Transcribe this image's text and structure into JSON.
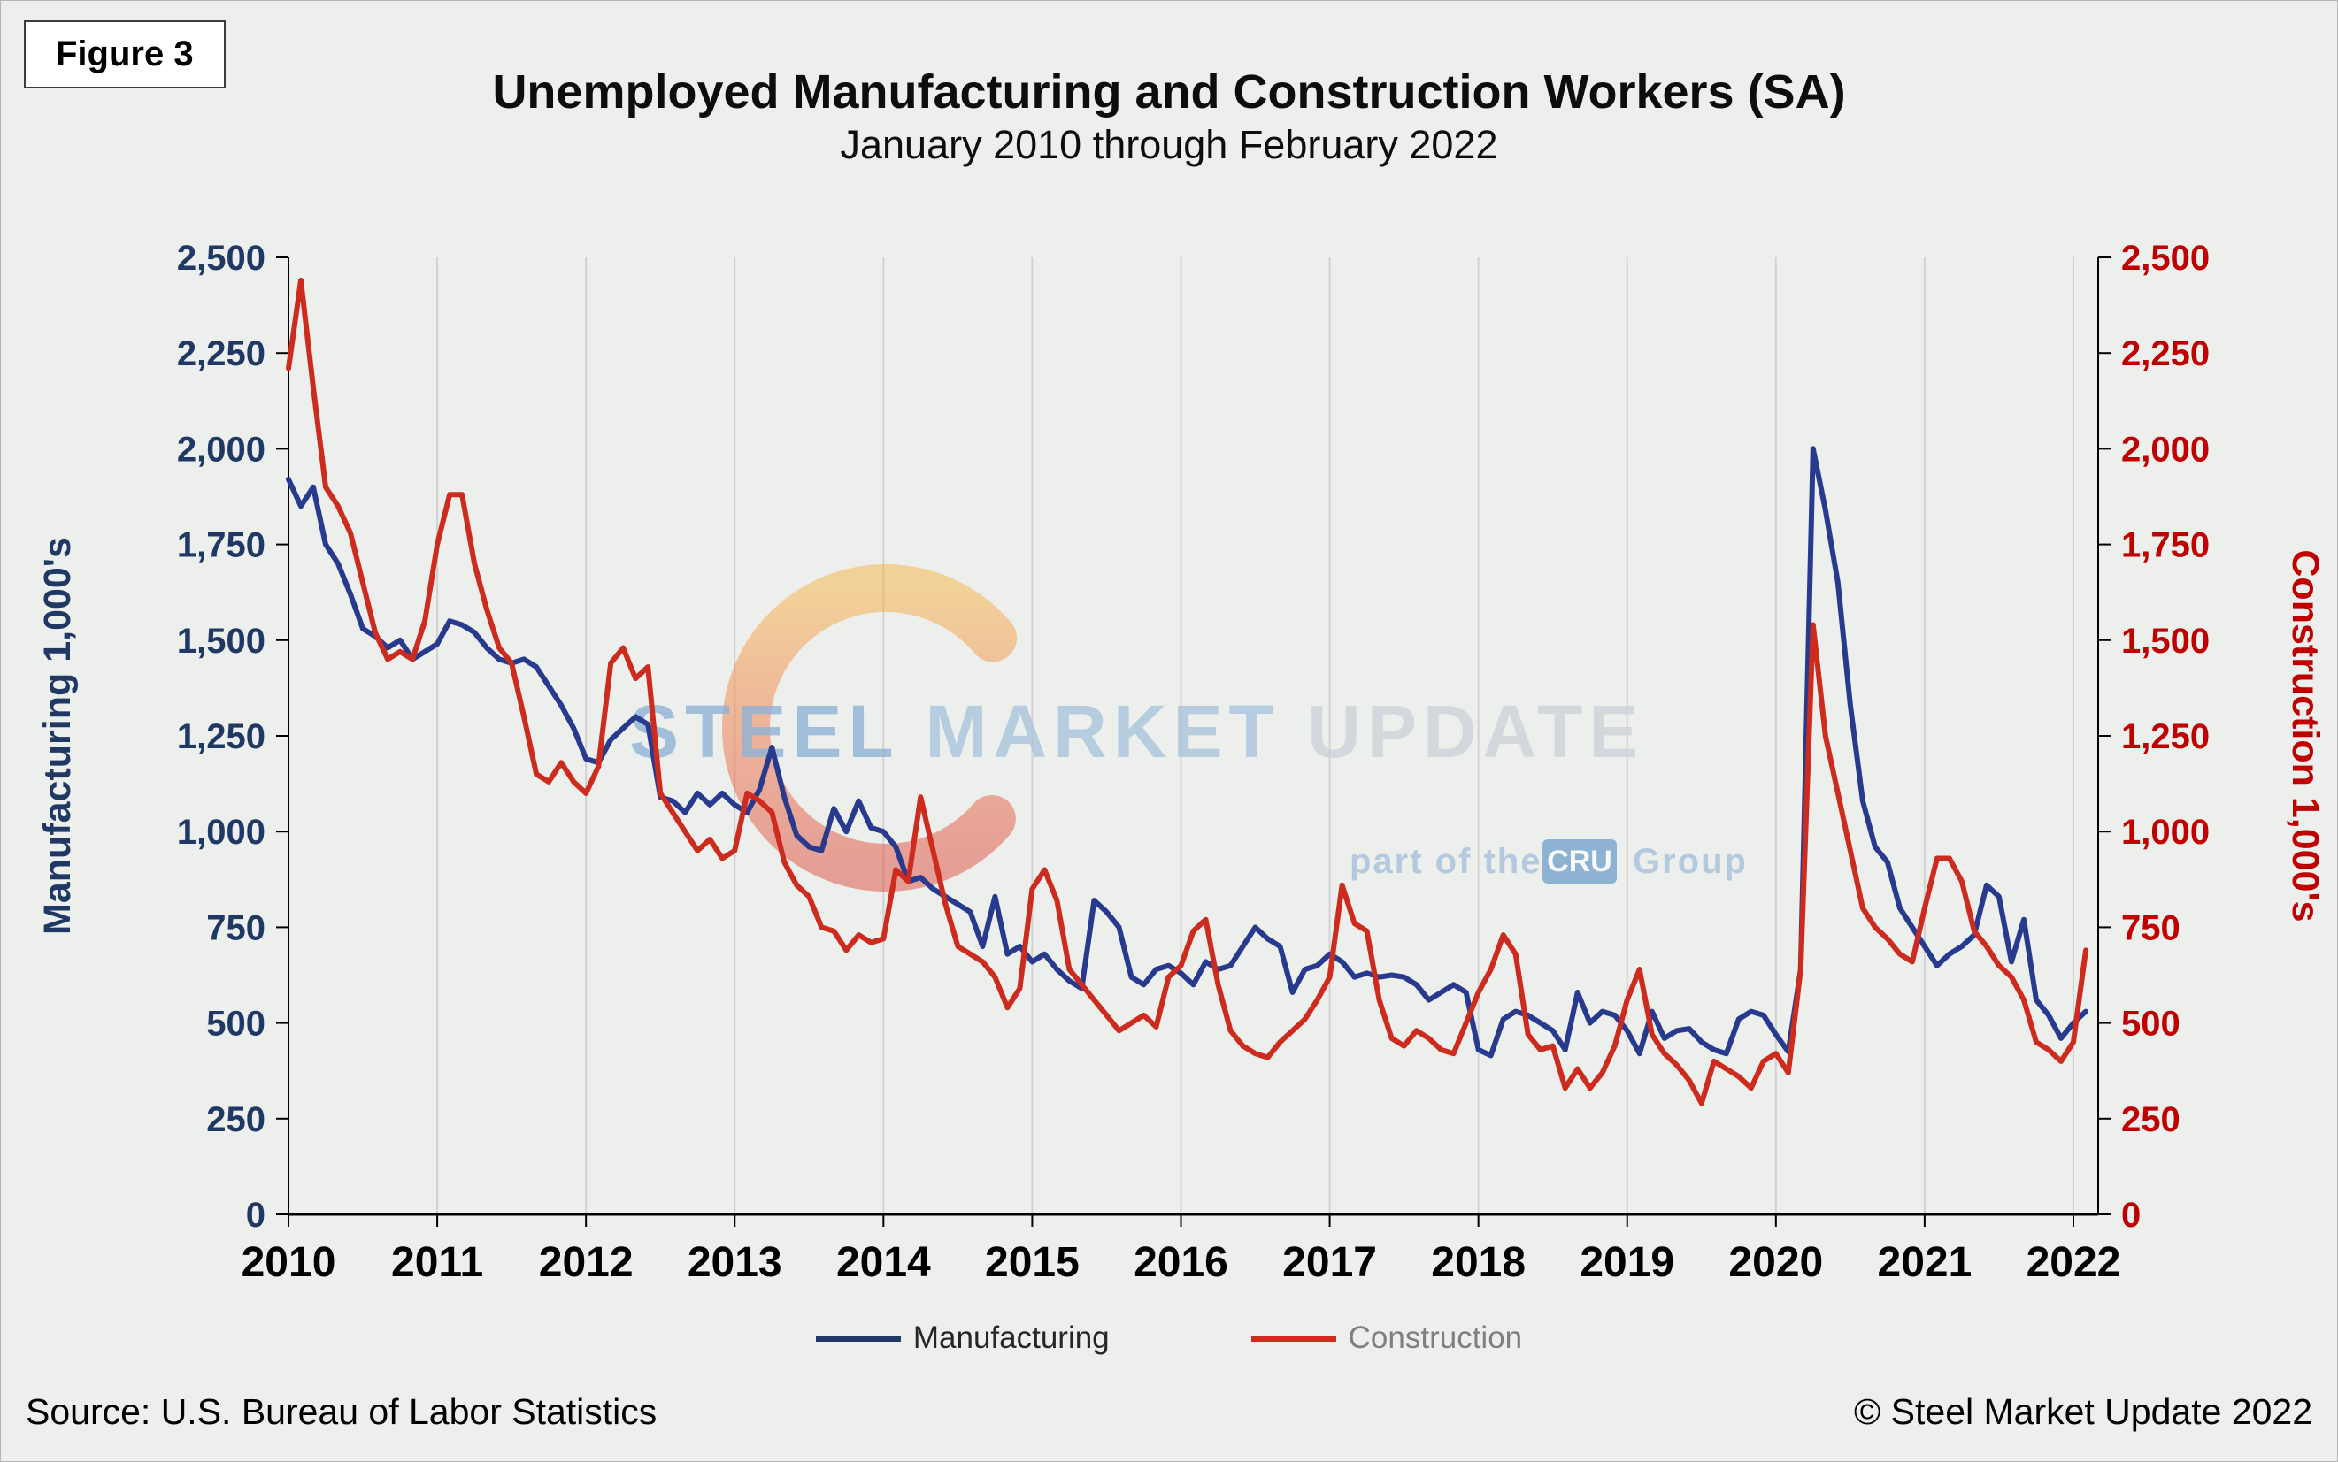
{
  "figure_label": "Figure 3",
  "title": "Unemployed Manufacturing and Construction Workers (SA)",
  "subtitle": "January 2010 through February 2022",
  "source": "Source: U.S. Bureau  of Labor Statistics",
  "copyright": "© Steel Market Update 2022",
  "watermark": {
    "steel": "STEEL",
    "market": "MARKET",
    "update": "UPDATE",
    "part_of": "part of the",
    "cru": "CRU",
    "group": "Group"
  },
  "legend": [
    {
      "label": "Manufacturing",
      "color": "#1F3864",
      "text_color": "#262626"
    },
    {
      "label": "Construction",
      "color": "#CC2B1D",
      "text_color": "#7f7f7f"
    }
  ],
  "chart_data": {
    "type": "line",
    "title": "Unemployed Manufacturing and Construction Workers (SA)",
    "subtitle": "January 2010 through February 2022",
    "x_unit": "month",
    "x_range": [
      "2010-01",
      "2022-02"
    ],
    "x_tick_labels": [
      "2010",
      "2011",
      "2012",
      "2013",
      "2014",
      "2015",
      "2016",
      "2017",
      "2018",
      "2019",
      "2020",
      "2021",
      "2022"
    ],
    "left_axis_label": "Manufacturing 1,000's",
    "right_axis_label": "Construction 1,000's",
    "ylim": [
      0,
      2500
    ],
    "y_ticks": [
      0,
      250,
      500,
      750,
      1000,
      1250,
      1500,
      1750,
      2000,
      2250,
      2500
    ],
    "grid": "vertical-yearly",
    "legend_position": "bottom",
    "series": [
      {
        "name": "Manufacturing",
        "axis": "left",
        "color": "#283A8E",
        "values": [
          1920,
          1850,
          1900,
          1750,
          1700,
          1620,
          1530,
          1510,
          1480,
          1500,
          1450,
          1470,
          1490,
          1550,
          1540,
          1520,
          1480,
          1450,
          1440,
          1450,
          1430,
          1380,
          1330,
          1270,
          1190,
          1180,
          1240,
          1270,
          1300,
          1280,
          1090,
          1080,
          1050,
          1100,
          1070,
          1100,
          1070,
          1050,
          1110,
          1220,
          1090,
          990,
          960,
          950,
          1060,
          1000,
          1080,
          1010,
          1000,
          960,
          870,
          880,
          850,
          830,
          810,
          790,
          700,
          830,
          680,
          700,
          660,
          680,
          640,
          610,
          590,
          820,
          790,
          750,
          620,
          600,
          640,
          650,
          630,
          600,
          660,
          640,
          650,
          700,
          750,
          720,
          700,
          580,
          640,
          650,
          680,
          660,
          620,
          630,
          620,
          625,
          620,
          600,
          560,
          580,
          600,
          580,
          430,
          415,
          510,
          530,
          520,
          500,
          480,
          430,
          580,
          500,
          530,
          520,
          480,
          420,
          530,
          460,
          480,
          485,
          450,
          430,
          420,
          510,
          530,
          520,
          470,
          425,
          640,
          2000,
          1840,
          1650,
          1330,
          1080,
          960,
          920,
          800,
          750,
          700,
          650,
          680,
          700,
          730,
          860,
          830,
          660,
          770,
          560,
          520,
          460,
          500,
          530
        ]
      },
      {
        "name": "Construction",
        "axis": "right",
        "color": "#CC2B1D",
        "values": [
          2210,
          2440,
          2160,
          1900,
          1850,
          1780,
          1650,
          1520,
          1450,
          1470,
          1450,
          1550,
          1750,
          1880,
          1880,
          1700,
          1580,
          1480,
          1440,
          1300,
          1150,
          1130,
          1180,
          1130,
          1100,
          1170,
          1440,
          1480,
          1400,
          1430,
          1100,
          1050,
          1000,
          950,
          980,
          930,
          950,
          1100,
          1080,
          1050,
          920,
          860,
          830,
          750,
          740,
          690,
          730,
          710,
          720,
          900,
          870,
          1090,
          950,
          810,
          700,
          680,
          660,
          620,
          540,
          590,
          850,
          900,
          820,
          640,
          600,
          560,
          520,
          480,
          500,
          520,
          490,
          620,
          650,
          740,
          770,
          600,
          480,
          440,
          420,
          410,
          450,
          480,
          510,
          560,
          620,
          860,
          760,
          740,
          560,
          460,
          440,
          480,
          460,
          430,
          420,
          500,
          580,
          640,
          730,
          680,
          470,
          430,
          440,
          330,
          380,
          330,
          370,
          440,
          560,
          640,
          470,
          420,
          390,
          350,
          290,
          400,
          380,
          360,
          330,
          400,
          420,
          370,
          640,
          1540,
          1250,
          1100,
          950,
          800,
          750,
          720,
          680,
          660,
          800,
          930,
          930,
          870,
          740,
          700,
          650,
          620,
          560,
          450,
          430,
          400,
          450,
          690
        ]
      }
    ]
  }
}
